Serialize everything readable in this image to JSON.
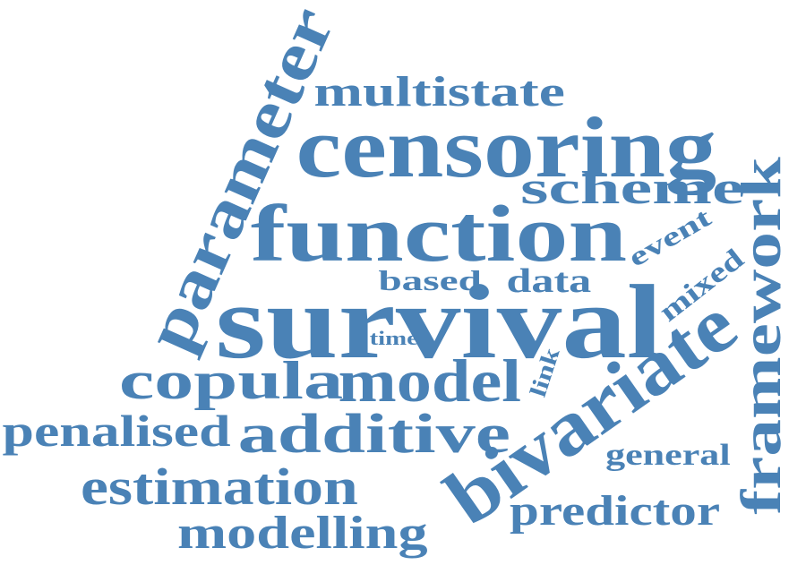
{
  "cloud": {
    "color": "#4a82b6",
    "background": "#ffffff",
    "words": [
      "survival",
      "censoring",
      "function",
      "bivariate",
      "parameter",
      "framework",
      "model",
      "additive",
      "copula",
      "multistate",
      "scheme",
      "estimation",
      "modelling",
      "predictor",
      "penalised",
      "data",
      "based",
      "event",
      "mixed",
      "general",
      "link",
      "time"
    ]
  }
}
